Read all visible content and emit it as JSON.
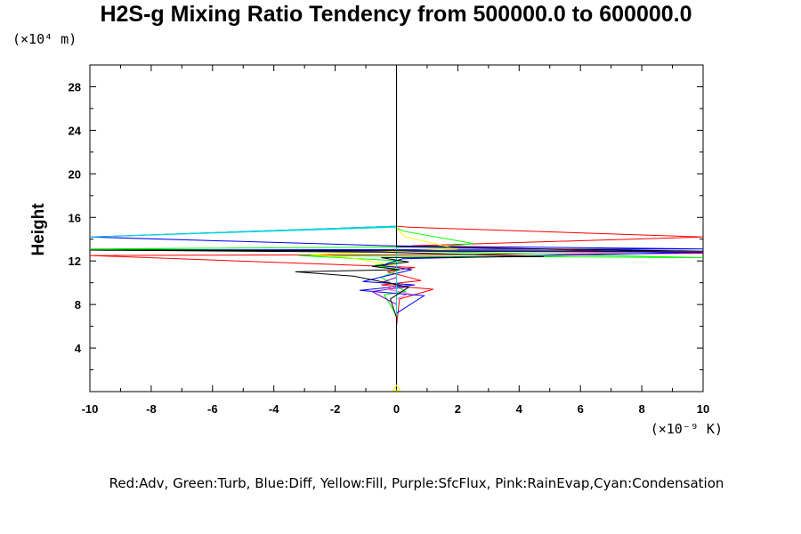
{
  "chart_data": {
    "type": "line",
    "title": "H2S-g Mixing Ratio Tendency from 500000.0 to 600000.0",
    "ylabel": "Height",
    "y_unit": "(×10⁴ m)",
    "x_unit": "(×10⁻⁹ K)",
    "xlim": [
      -10,
      10
    ],
    "ylim": [
      0,
      30
    ],
    "x_ticks": [
      "-10",
      "-8",
      "-6",
      "-4",
      "-2",
      "0",
      "2",
      "4",
      "6",
      "8",
      "10"
    ],
    "y_ticks": [
      "4",
      "8",
      "12",
      "16",
      "20",
      "24",
      "28"
    ],
    "legend_text": "Red:Adv, Green:Turb, Blue:Diff, Yellow:Fill, Purple:SfcFlux, Pink:RainEvap,Cyan:Condensation",
    "series": [
      {
        "name": "Adv",
        "color": "#ff0000",
        "points": [
          [
            0,
            0.2
          ],
          [
            0,
            6
          ],
          [
            0.1,
            8.5
          ],
          [
            1.2,
            9.4
          ],
          [
            -0.5,
            9.8
          ],
          [
            0.8,
            10.2
          ],
          [
            -0.3,
            11
          ],
          [
            0.6,
            11.4
          ],
          [
            -10,
            12.5
          ],
          [
            1.5,
            12.6
          ],
          [
            10,
            12.7
          ],
          [
            0.5,
            13.4
          ],
          [
            10,
            14.2
          ],
          [
            0.4,
            15.1
          ],
          [
            0,
            15.2
          ],
          [
            0,
            29.8
          ]
        ]
      },
      {
        "name": "Turb",
        "color": "#00ff00",
        "points": [
          [
            0,
            0.2
          ],
          [
            0,
            7
          ],
          [
            -0.4,
            8.9
          ],
          [
            0.3,
            9.2
          ],
          [
            -0.5,
            10.5
          ],
          [
            0.1,
            11.2
          ],
          [
            -0.7,
            11.6
          ],
          [
            0.2,
            12
          ],
          [
            -3.2,
            12.5
          ],
          [
            10,
            12.3
          ],
          [
            0.4,
            12.9
          ],
          [
            -10,
            13.1
          ],
          [
            1.5,
            13.3
          ],
          [
            2.5,
            13.6
          ],
          [
            0.3,
            14.7
          ],
          [
            0,
            15
          ],
          [
            0,
            29.8
          ]
        ]
      },
      {
        "name": "Diff",
        "color": "#0000ff",
        "points": [
          [
            0,
            0.2
          ],
          [
            0,
            7.2
          ],
          [
            0.9,
            8.8
          ],
          [
            -1.2,
            9.3
          ],
          [
            0.6,
            9.8
          ],
          [
            -1.1,
            10.1
          ],
          [
            0.5,
            11.2
          ],
          [
            -0.5,
            11.6
          ],
          [
            0.2,
            12.2
          ],
          [
            10,
            12.8
          ],
          [
            -10,
            13.0
          ],
          [
            10,
            13.1
          ],
          [
            -0.3,
            13.4
          ],
          [
            -10,
            14.2
          ],
          [
            0,
            15.2
          ],
          [
            0,
            29.8
          ]
        ]
      },
      {
        "name": "Fill",
        "color": "#ffff00",
        "points": [
          [
            0,
            0.2
          ],
          [
            0,
            11.5
          ],
          [
            -1.5,
            12.3
          ],
          [
            -2.8,
            12.6
          ],
          [
            2,
            13.1
          ],
          [
            0.3,
            14.2
          ],
          [
            0,
            15
          ],
          [
            0,
            29.8
          ]
        ]
      },
      {
        "name": "SfcFlux",
        "color": "#8000c0",
        "points": [
          [
            0,
            0.2
          ],
          [
            0,
            8
          ],
          [
            -0.8,
            9.2
          ],
          [
            0.3,
            9.6
          ],
          [
            -0.4,
            10.1
          ],
          [
            0,
            10.5
          ],
          [
            0,
            29.8
          ]
        ]
      },
      {
        "name": "RainEvap",
        "color": "#ff66cc",
        "points": [
          [
            0,
            0.2
          ],
          [
            0,
            8.5
          ],
          [
            0.4,
            9
          ],
          [
            -0.3,
            9.4
          ],
          [
            0,
            9.8
          ],
          [
            0,
            29.8
          ]
        ]
      },
      {
        "name": "Condensation",
        "color": "#00d8d8",
        "points": [
          [
            0,
            0.2
          ],
          [
            0,
            15.1
          ],
          [
            -10,
            14.2
          ],
          [
            0,
            15.2
          ],
          [
            0,
            29.8
          ]
        ]
      },
      {
        "name": "",
        "color": "#000000",
        "points": [
          [
            0,
            0.2
          ],
          [
            0,
            6.8
          ],
          [
            -0.2,
            8.5
          ],
          [
            0.4,
            9.6
          ],
          [
            -1.4,
            10.6
          ],
          [
            -3.3,
            11
          ],
          [
            0.1,
            11.2
          ],
          [
            -0.8,
            11.5
          ],
          [
            0.4,
            11.9
          ],
          [
            -0.5,
            12.3
          ],
          [
            4.8,
            12.4
          ],
          [
            -0.3,
            12.8
          ],
          [
            -10,
            13.0
          ],
          [
            10,
            12.9
          ],
          [
            0,
            13.3
          ],
          [
            0,
            15
          ],
          [
            0,
            29.8
          ]
        ]
      }
    ]
  }
}
